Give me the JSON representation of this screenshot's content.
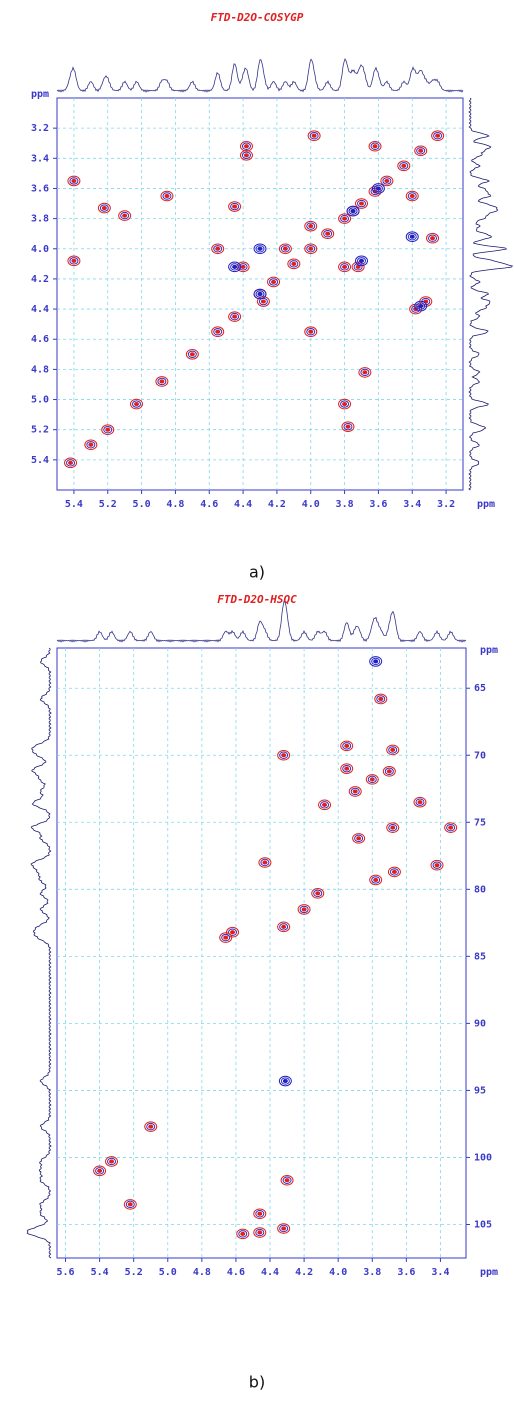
{
  "chart_data": [
    {
      "type": "contour",
      "title": "FTD-D2O-COSYGP",
      "caption": "a)",
      "x_label": "ppm",
      "y_label": "ppm",
      "xlim": [
        5.5,
        3.1
      ],
      "ylim": [
        3.0,
        5.6
      ],
      "grid": true,
      "xticks": [
        5.4,
        5.2,
        {
          "value": 5.0,
          "label": "5.0"
        },
        4.8,
        4.6,
        4.4,
        4.2,
        {
          "value": 4.0,
          "label": "4.0"
        },
        3.8,
        3.6,
        3.4,
        3.2
      ],
      "yticks": [
        3.2,
        3.4,
        3.6,
        3.8,
        {
          "value": 4.0,
          "label": "4.0"
        },
        4.2,
        4.4,
        4.6,
        4.8,
        {
          "value": 5.0,
          "label": "5.0"
        },
        5.2,
        5.4
      ],
      "series": [
        {
          "color": "#e02020",
          "x": [
            5.42,
            5.3,
            5.2,
            5.03,
            4.88,
            4.7,
            4.55,
            4.45,
            4.3,
            4.22,
            4.1,
            4.0,
            3.9,
            3.8,
            3.75,
            3.7,
            3.62,
            3.55,
            3.45,
            3.35,
            3.25,
            5.4,
            5.4,
            5.22,
            5.1,
            4.85,
            4.55,
            4.4,
            4.15,
            3.8,
            3.72,
            4.28,
            3.38,
            3.32,
            3.28,
            3.4,
            3.68,
            3.78,
            3.8,
            4.0,
            4.0,
            3.62,
            4.38,
            4.38,
            3.98,
            4.45
          ],
          "values": [
            5.42,
            5.3,
            5.2,
            5.03,
            4.88,
            4.7,
            4.55,
            4.45,
            4.3,
            4.22,
            4.1,
            4.0,
            3.9,
            3.8,
            3.75,
            3.7,
            3.62,
            3.55,
            3.45,
            3.35,
            3.25,
            4.08,
            3.55,
            3.73,
            3.78,
            3.65,
            4.0,
            4.12,
            4.0,
            4.12,
            4.12,
            4.35,
            4.4,
            4.35,
            3.93,
            3.65,
            4.82,
            5.18,
            5.03,
            4.55,
            3.85,
            3.32,
            3.32,
            3.38,
            3.25,
            3.72
          ]
        },
        {
          "color": "#2020c8",
          "x": [
            4.3,
            3.75,
            3.6,
            3.4,
            4.45,
            4.3,
            3.7,
            3.35
          ],
          "values": [
            4.3,
            3.75,
            3.6,
            3.92,
            4.12,
            4.0,
            4.08,
            4.38
          ]
        }
      ]
    },
    {
      "type": "contour",
      "title": "FTD-D2O-HSQC",
      "caption": "b)",
      "x_label": "ppm",
      "y_label": "ppm",
      "xlim": [
        5.65,
        3.25
      ],
      "ylim": [
        62,
        107.5
      ],
      "grid": true,
      "xticks": [
        5.6,
        5.4,
        5.2,
        {
          "value": 5.0,
          "label": "5.0"
        },
        4.8,
        4.6,
        4.4,
        4.2,
        {
          "value": 4.0,
          "label": "4.0"
        },
        3.8,
        3.6,
        3.4
      ],
      "yticks": [
        65,
        70,
        75,
        80,
        85,
        90,
        95,
        100,
        105
      ],
      "series": [
        {
          "color": "#e02020",
          "x": [
            5.4,
            5.33,
            5.22,
            5.1,
            4.46,
            4.56,
            4.46,
            4.32,
            4.3,
            4.62,
            4.66,
            4.32,
            4.12,
            4.2,
            4.43,
            4.32,
            3.78,
            3.67,
            3.68,
            3.34,
            3.52,
            3.8,
            3.68,
            3.7,
            3.75,
            3.9,
            3.95,
            3.88,
            3.42,
            4.08,
            3.95
          ],
          "values": [
            101,
            100.3,
            103.5,
            97.7,
            104.2,
            105.7,
            105.6,
            105.3,
            101.7,
            83.2,
            83.6,
            82.8,
            80.3,
            81.5,
            78,
            70,
            79.3,
            78.7,
            75.4,
            75.4,
            73.5,
            71.8,
            69.6,
            71.2,
            65.8,
            72.7,
            71,
            76.2,
            78.2,
            73.7,
            69.3
          ]
        },
        {
          "color": "#2020c8",
          "x": [
            3.78,
            4.31
          ],
          "values": [
            63,
            94.3
          ]
        }
      ]
    }
  ]
}
